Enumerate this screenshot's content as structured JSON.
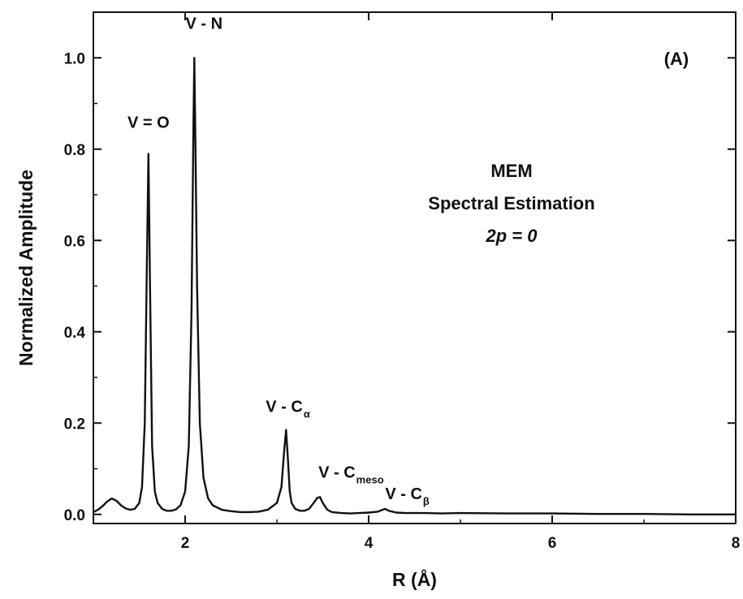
{
  "chart_data": {
    "type": "line",
    "title": "",
    "xlabel": "R (Å)",
    "ylabel": "Normalized Amplitude",
    "xlim": [
      1.0,
      8.0
    ],
    "ylim": [
      -0.02,
      1.1
    ],
    "x_ticks": [
      2,
      4,
      6,
      8
    ],
    "y_ticks": [
      0.0,
      0.2,
      0.4,
      0.6,
      0.8,
      1.0
    ],
    "x_tick_labels": [
      "2",
      "4",
      "6",
      "8"
    ],
    "y_tick_labels": [
      "0.0",
      "0.2",
      "0.4",
      "0.6",
      "0.8",
      "1.0"
    ],
    "grid": false,
    "panel_label": "(A)",
    "text_block": [
      "MEM",
      "Spectral Estimation",
      "2p = 0"
    ],
    "peaks": [
      {
        "label": "",
        "x": 1.22,
        "y": 0.035
      },
      {
        "label": "V = O",
        "x": 1.6,
        "y": 0.79
      },
      {
        "label": "V - N",
        "x": 2.1,
        "y": 1.0
      },
      {
        "label": "V - C",
        "sub": "α",
        "x": 3.12,
        "y": 0.185
      },
      {
        "label": "V - C",
        "sub": "meso",
        "x": 3.47,
        "y": 0.038
      },
      {
        "label": "V - C",
        "sub": "β",
        "x": 4.18,
        "y": 0.012
      }
    ],
    "series": [
      {
        "x": [
          1.0,
          1.05,
          1.1,
          1.15,
          1.2,
          1.25,
          1.3,
          1.35,
          1.4,
          1.45,
          1.5,
          1.53,
          1.56,
          1.58,
          1.6,
          1.62,
          1.64,
          1.67,
          1.7,
          1.75,
          1.8,
          1.85,
          1.9,
          1.95,
          2.0,
          2.04,
          2.07,
          2.09,
          2.1,
          2.11,
          2.13,
          2.16,
          2.2,
          2.25,
          2.3,
          2.4,
          2.5,
          2.6,
          2.7,
          2.8,
          2.9,
          3.0,
          3.05,
          3.08,
          3.1,
          3.12,
          3.14,
          3.16,
          3.2,
          3.25,
          3.3,
          3.35,
          3.4,
          3.44,
          3.47,
          3.5,
          3.55,
          3.6,
          3.7,
          3.8,
          3.9,
          4.0,
          4.1,
          4.15,
          4.18,
          4.22,
          4.3,
          4.4,
          4.6,
          4.8,
          5.0,
          5.5,
          6.0,
          6.5,
          7.0,
          7.5,
          8.0
        ],
        "y": [
          0.005,
          0.01,
          0.018,
          0.028,
          0.035,
          0.03,
          0.02,
          0.013,
          0.01,
          0.012,
          0.025,
          0.06,
          0.2,
          0.5,
          0.79,
          0.45,
          0.15,
          0.05,
          0.025,
          0.012,
          0.008,
          0.008,
          0.011,
          0.02,
          0.05,
          0.15,
          0.45,
          0.85,
          1.0,
          0.85,
          0.5,
          0.2,
          0.08,
          0.035,
          0.02,
          0.01,
          0.007,
          0.005,
          0.005,
          0.006,
          0.01,
          0.025,
          0.06,
          0.14,
          0.185,
          0.12,
          0.05,
          0.025,
          0.012,
          0.008,
          0.008,
          0.012,
          0.025,
          0.036,
          0.038,
          0.025,
          0.01,
          0.005,
          0.003,
          0.002,
          0.003,
          0.004,
          0.006,
          0.01,
          0.012,
          0.008,
          0.004,
          0.003,
          0.003,
          0.002,
          0.003,
          0.002,
          0.002,
          0.001,
          0.001,
          0.0,
          0.0
        ]
      }
    ]
  }
}
